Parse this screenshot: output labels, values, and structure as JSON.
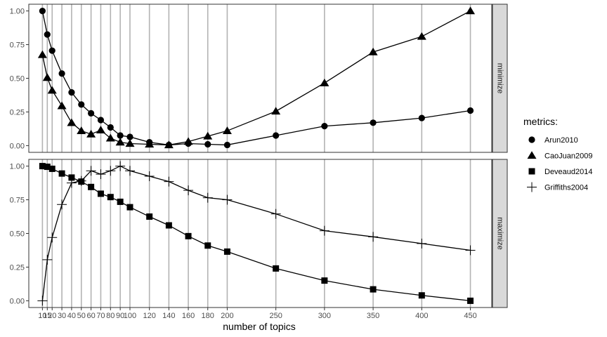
{
  "chart_data": {
    "type": "line",
    "xlabel": "number of topics",
    "x_ticks": [
      10,
      15,
      20,
      30,
      40,
      50,
      60,
      70,
      80,
      90,
      100,
      120,
      140,
      160,
      180,
      200,
      250,
      300,
      350,
      400,
      450
    ],
    "x_tick_labels": [
      "10",
      "15",
      "20",
      "30",
      "40",
      "50",
      "60",
      "70",
      "80",
      "90",
      "100",
      "120",
      "140",
      "160",
      "180",
      "200",
      "250",
      "300",
      "350",
      "400",
      "450"
    ],
    "xlim": [
      -4,
      472
    ],
    "legend": {
      "title": "metrics:",
      "position": "right"
    },
    "panels": [
      {
        "strip": "minimize",
        "ylim": [
          -0.05,
          1.05
        ],
        "y_ticks": [
          0,
          0.25,
          0.5,
          0.75,
          1
        ],
        "y_tick_labels": [
          "0.00",
          "0.25",
          "0.50",
          "0.75",
          "1.00"
        ],
        "series": [
          {
            "name": "Arun2010",
            "shape": "circle",
            "x": [
              10,
              15,
              20,
              30,
              40,
              50,
              60,
              70,
              80,
              90,
              100,
              120,
              140,
              160,
              180,
              200,
              250,
              300,
              350,
              400,
              450
            ],
            "y": [
              1.0,
              0.825,
              0.705,
              0.535,
              0.395,
              0.305,
              0.24,
              0.19,
              0.135,
              0.075,
              0.065,
              0.025,
              0.005,
              0.015,
              0.01,
              0.005,
              0.075,
              0.145,
              0.17,
              0.205,
              0.26
            ]
          },
          {
            "name": "CaoJuan2009",
            "shape": "triangle",
            "x": [
              10,
              15,
              20,
              30,
              40,
              50,
              60,
              70,
              80,
              90,
              100,
              120,
              140,
              160,
              180,
              200,
              250,
              300,
              350,
              400,
              450
            ],
            "y": [
              0.675,
              0.505,
              0.41,
              0.295,
              0.17,
              0.11,
              0.085,
              0.115,
              0.055,
              0.025,
              0.015,
              0.01,
              0.005,
              0.03,
              0.07,
              0.11,
              0.255,
              0.465,
              0.695,
              0.81,
              1.0
            ]
          }
        ]
      },
      {
        "strip": "maximize",
        "ylim": [
          -0.05,
          1.05
        ],
        "y_ticks": [
          0,
          0.25,
          0.5,
          0.75,
          1
        ],
        "y_tick_labels": [
          "0.00",
          "0.25",
          "0.50",
          "0.75",
          "1.00"
        ],
        "series": [
          {
            "name": "Deveaud2014",
            "shape": "square",
            "x": [
              10,
              15,
              20,
              30,
              40,
              50,
              60,
              70,
              80,
              90,
              100,
              120,
              140,
              160,
              180,
              200,
              250,
              300,
              350,
              400,
              450
            ],
            "y": [
              1.0,
              0.995,
              0.98,
              0.945,
              0.915,
              0.885,
              0.845,
              0.795,
              0.77,
              0.735,
              0.695,
              0.625,
              0.56,
              0.48,
              0.41,
              0.365,
              0.24,
              0.15,
              0.085,
              0.04,
              0.0
            ]
          },
          {
            "name": "Griffiths2004",
            "shape": "plus",
            "x": [
              10,
              15,
              20,
              30,
              40,
              50,
              60,
              70,
              80,
              90,
              100,
              120,
              140,
              160,
              180,
              200,
              250,
              300,
              350,
              400,
              450
            ],
            "y": [
              0.0,
              0.305,
              0.47,
              0.715,
              0.875,
              0.89,
              0.965,
              0.94,
              0.965,
              1.0,
              0.965,
              0.925,
              0.885,
              0.82,
              0.765,
              0.75,
              0.645,
              0.52,
              0.475,
              0.425,
              0.375
            ]
          }
        ]
      }
    ],
    "legend_entries": [
      {
        "name": "Arun2010",
        "shape": "circle"
      },
      {
        "name": "CaoJuan2009",
        "shape": "triangle"
      },
      {
        "name": "Deveaud2014",
        "shape": "square"
      },
      {
        "name": "Griffiths2004",
        "shape": "plus"
      }
    ],
    "colors": {
      "line": "#000000",
      "vline": "#b3b3b3",
      "strip_bg": "#d9d9d9",
      "strip_border": "#333333",
      "panel_border": "#333333",
      "tick_text": "#4d4d4d"
    }
  }
}
